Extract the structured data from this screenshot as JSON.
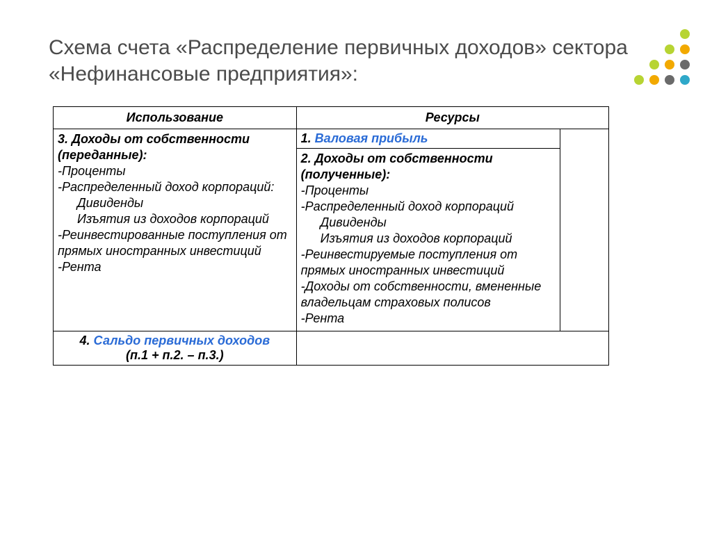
{
  "title": "Схема счета «Распределение первичных доходов» сектора «Нефинансовые предприятия»:",
  "headers": {
    "left": "Использование",
    "right": "Ресурсы"
  },
  "leftCell": {
    "heading_num": "3. ",
    "heading": "Доходы от собственности (переданные):",
    "lines": {
      "l1": "-Проценты",
      "l2": "-Распределенный доход корпораций:",
      "l3": "Дивиденды",
      "l4": "Изъятия из доходов корпораций",
      "l5": "-Реинвестированные поступления от прямых иностранных инвестиций",
      "l6": "-Рента"
    }
  },
  "rightTop": {
    "num": "1. ",
    "text": "Валовая прибыль"
  },
  "rightCell": {
    "heading_num": "2. ",
    "heading": "Доходы от собственности (полученные):",
    "lines": {
      "l1": "-Проценты",
      "l2": "-Распределенный доход корпораций",
      "l3": "Дивиденды",
      "l4": "Изъятия из доходов корпораций",
      "l5": "-Реинвестируемые поступления от прямых иностранных инвестиций",
      "l6": "-Доходы от собственности, вмененные владельцам страховых полисов",
      "l7": "-Рента"
    }
  },
  "bottom": {
    "num": "4. ",
    "text": "Сальдо первичных доходов",
    "formula": "(п.1 + п.2. – п.3.)"
  },
  "dotColors": [
    "transparent",
    "transparent",
    "transparent",
    "#b7d433",
    "transparent",
    "transparent",
    "#b7d433",
    "#f2a900",
    "transparent",
    "#b7d433",
    "#f2a900",
    "#6a6a6a",
    "#b7d433",
    "#f2a900",
    "#6a6a6a",
    "#2fa8c9"
  ]
}
